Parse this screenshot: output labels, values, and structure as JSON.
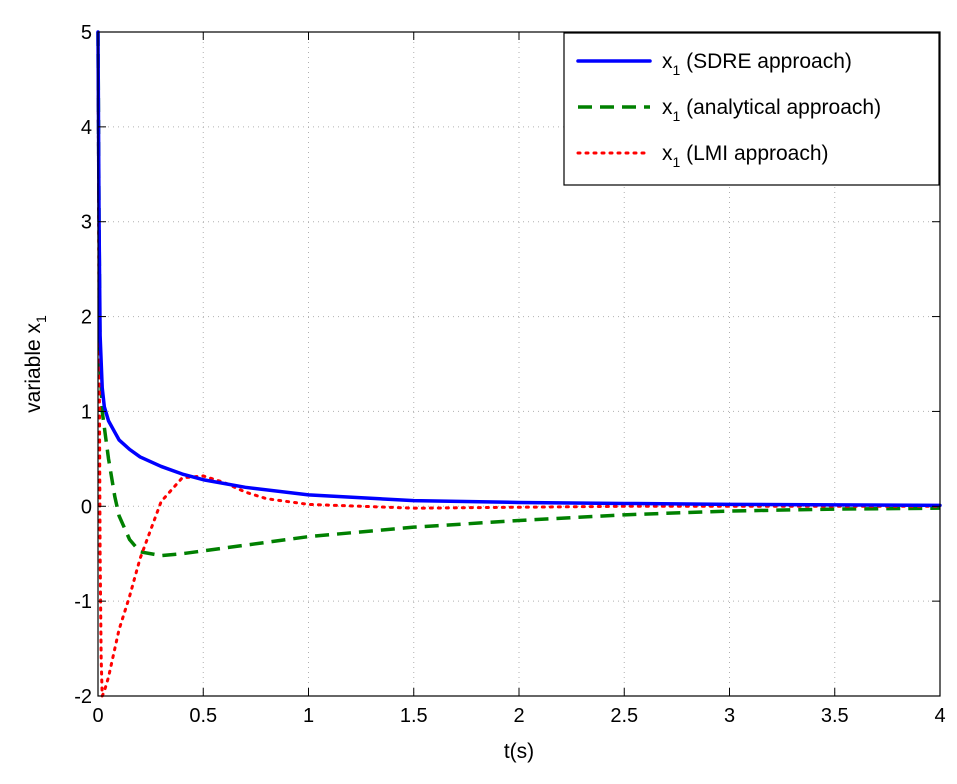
{
  "chart_data": {
    "type": "line",
    "title": "",
    "xlabel": "t(s)",
    "ylabel": {
      "main": "variable x",
      "sub": "1"
    },
    "xlim": [
      0,
      4
    ],
    "ylim": [
      -2,
      5
    ],
    "xticks": [
      0,
      0.5,
      1,
      1.5,
      2,
      2.5,
      3,
      3.5,
      4
    ],
    "xtick_labels": [
      "0",
      "0.5",
      "1",
      "1.5",
      "2",
      "2.5",
      "3",
      "3.5",
      "4"
    ],
    "yticks": [
      -2,
      -1,
      0,
      1,
      2,
      3,
      4,
      5
    ],
    "ytick_labels": [
      "-2",
      "-1",
      "0",
      "1",
      "2",
      "3",
      "4",
      "5"
    ],
    "grid": true,
    "legend_position": "top-right",
    "series": [
      {
        "name": {
          "main": "x",
          "sub": "1",
          "suffix": " (SDRE approach)"
        },
        "color": "#0000ff",
        "style": "solid",
        "x": [
          0,
          0.005,
          0.01,
          0.02,
          0.03,
          0.05,
          0.08,
          0.1,
          0.15,
          0.2,
          0.3,
          0.4,
          0.5,
          0.7,
          1.0,
          1.5,
          2.0,
          2.5,
          3.0,
          3.5,
          4.0
        ],
        "y": [
          5,
          3.0,
          1.8,
          1.25,
          1.05,
          0.9,
          0.78,
          0.7,
          0.6,
          0.52,
          0.42,
          0.34,
          0.28,
          0.2,
          0.12,
          0.06,
          0.04,
          0.03,
          0.02,
          0.015,
          0.01
        ]
      },
      {
        "name": {
          "main": "x",
          "sub": "1",
          "suffix": " (analytical approach)"
        },
        "color": "#008000",
        "style": "dashed",
        "x": [
          0,
          0.005,
          0.01,
          0.02,
          0.05,
          0.08,
          0.1,
          0.15,
          0.2,
          0.3,
          0.4,
          0.6,
          0.8,
          1.0,
          1.5,
          2.0,
          2.5,
          3.0,
          3.5,
          4.0
        ],
        "y": [
          5,
          3.0,
          1.5,
          1.0,
          0.5,
          0.1,
          -0.1,
          -0.35,
          -0.48,
          -0.52,
          -0.5,
          -0.44,
          -0.38,
          -0.32,
          -0.22,
          -0.15,
          -0.09,
          -0.05,
          -0.03,
          -0.02
        ]
      },
      {
        "name": {
          "main": "x",
          "sub": "1",
          "suffix": " (LMI approach)"
        },
        "color": "#ff0000",
        "style": "dotted",
        "x": [
          0,
          0.005,
          0.01,
          0.015,
          0.02,
          0.03,
          0.05,
          0.08,
          0.1,
          0.15,
          0.2,
          0.3,
          0.4,
          0.5,
          0.6,
          0.7,
          0.8,
          1.0,
          1.5,
          2.0,
          2.5,
          3.0,
          3.5,
          4.0
        ],
        "y": [
          5,
          2.0,
          -0.5,
          -1.6,
          -2.0,
          -1.95,
          -1.8,
          -1.5,
          -1.3,
          -0.95,
          -0.55,
          0.05,
          0.3,
          0.32,
          0.25,
          0.15,
          0.08,
          0.02,
          -0.02,
          -0.01,
          0.0,
          0.0,
          0.0,
          0.0
        ]
      }
    ]
  }
}
